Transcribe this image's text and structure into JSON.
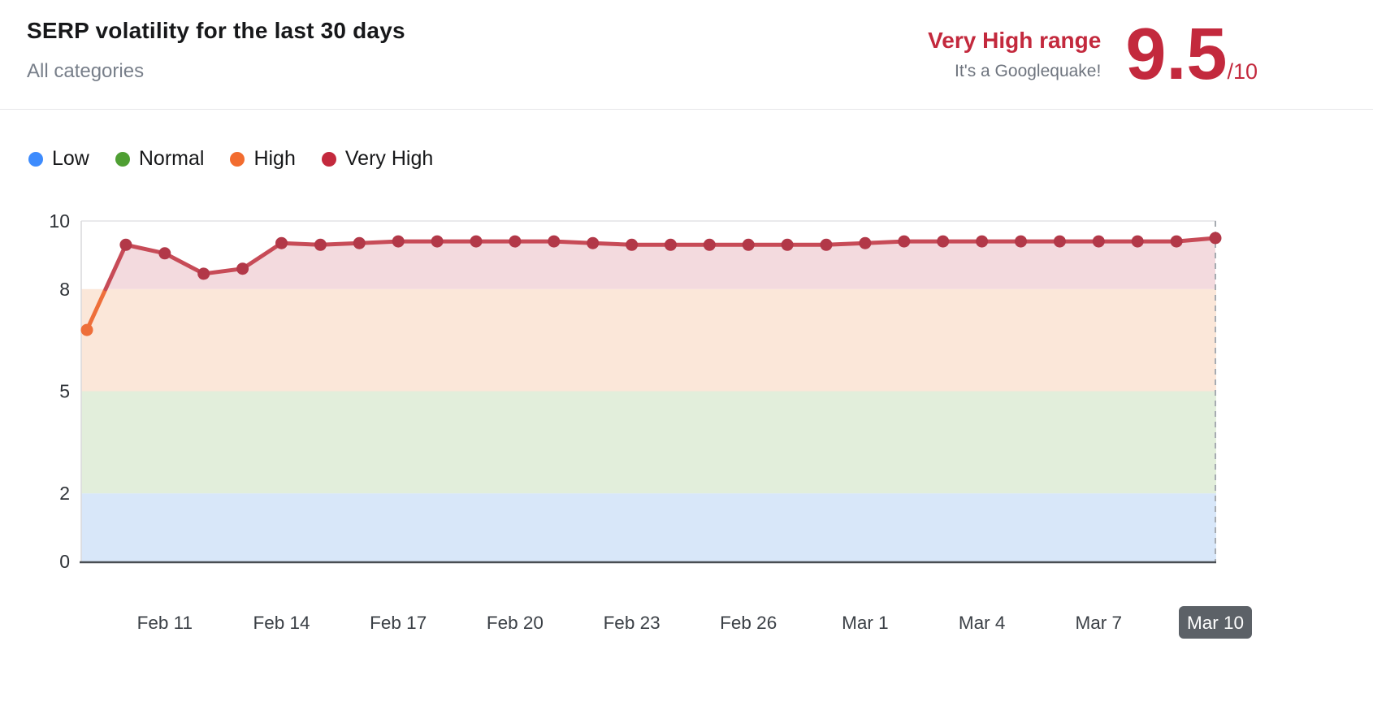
{
  "colors": {
    "accent_red": "#c3293d",
    "tick_highlight_bg": "#5c6167",
    "tick_highlight_text": "#ffffff"
  },
  "header": {
    "title": "SERP volatility for the last 30 days",
    "subtitle": "All categories",
    "range_label": "Very High range",
    "range_sub": "It's a Googlequake!",
    "score": "9.5",
    "score_max": "/10"
  },
  "legend": [
    {
      "label": "Low",
      "color": "#3d8bfd"
    },
    {
      "label": "Normal",
      "color": "#4f9f33"
    },
    {
      "label": "High",
      "color": "#f26c2f"
    },
    {
      "label": "Very High",
      "color": "#c3293d"
    }
  ],
  "chart_data": {
    "type": "area",
    "title": "SERP volatility for the last 30 days",
    "x": [
      "Feb 9",
      "Feb 10",
      "Feb 11",
      "Feb 12",
      "Feb 13",
      "Feb 14",
      "Feb 15",
      "Feb 16",
      "Feb 17",
      "Feb 18",
      "Feb 19",
      "Feb 20",
      "Feb 21",
      "Feb 22",
      "Feb 23",
      "Feb 24",
      "Feb 25",
      "Feb 26",
      "Feb 27",
      "Feb 28",
      "Mar 1",
      "Mar 2",
      "Mar 3",
      "Mar 4",
      "Mar 5",
      "Mar 6",
      "Mar 7",
      "Mar 8",
      "Mar 9",
      "Mar 10"
    ],
    "values": [
      6.8,
      9.3,
      9.05,
      8.45,
      8.6,
      9.35,
      9.3,
      9.35,
      9.4,
      9.4,
      9.4,
      9.4,
      9.4,
      9.35,
      9.3,
      9.3,
      9.3,
      9.3,
      9.3,
      9.3,
      9.35,
      9.4,
      9.4,
      9.4,
      9.4,
      9.4,
      9.4,
      9.4,
      9.4,
      9.5
    ],
    "ylim": [
      0,
      10
    ],
    "y_ticks": [
      0,
      2,
      5,
      8,
      10
    ],
    "x_ticks": [
      "Feb 11",
      "Feb 14",
      "Feb 17",
      "Feb 20",
      "Feb 23",
      "Feb 26",
      "Mar 1",
      "Mar 4",
      "Mar 7",
      "Mar 10"
    ],
    "highlighted_tick": "Mar 10",
    "bands": [
      {
        "label": "Low",
        "from": 0,
        "to": 2,
        "color": "#d8e7f9"
      },
      {
        "label": "Normal",
        "from": 2,
        "to": 5,
        "color": "#e2eedb"
      },
      {
        "label": "High",
        "from": 5,
        "to": 8,
        "color": "#fbe7d9"
      },
      {
        "label": "Very High",
        "from": 8,
        "to": 10,
        "color": "#f3dade"
      }
    ],
    "high_threshold": 8,
    "line_color": "#c74b57",
    "point_color": "#b23848",
    "high_point_color": "#ee6f3a",
    "legend_position": "top-left",
    "grid": "minimal"
  }
}
